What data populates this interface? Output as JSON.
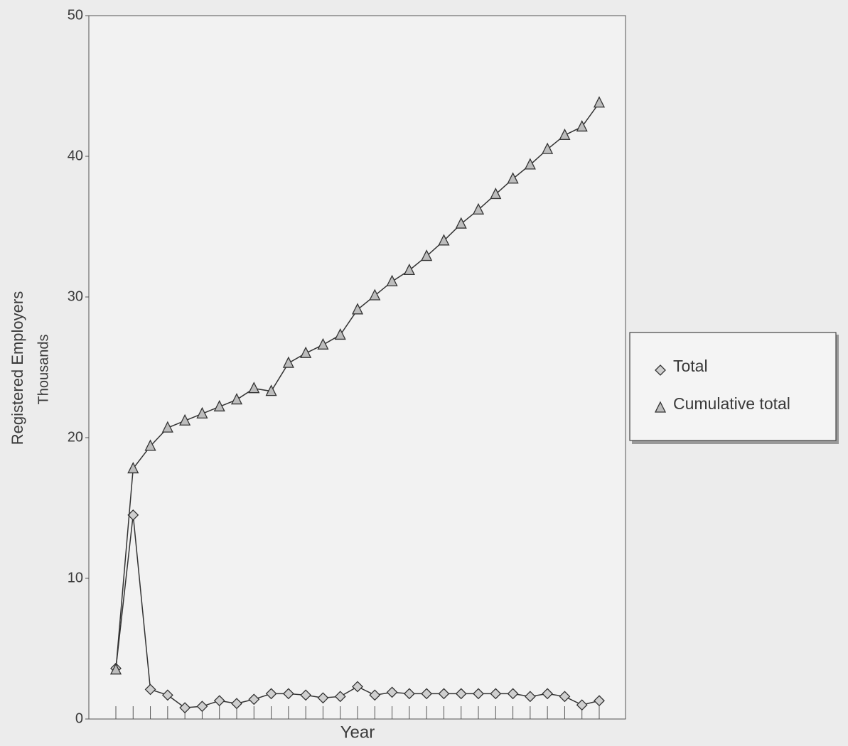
{
  "chart_data": {
    "type": "line",
    "x_label": "Year",
    "y_label": "Registered Employers",
    "y_unit_label": "Thousands",
    "categories": [
      null,
      null,
      null,
      null,
      null,
      null,
      null,
      null,
      null,
      null,
      null,
      null,
      null,
      null,
      null,
      null,
      null,
      null,
      null,
      null,
      null,
      null,
      null,
      null,
      null,
      null,
      null,
      null,
      null
    ],
    "series": [
      {
        "name": "Total",
        "color": "#333333",
        "marker": "diamond",
        "values": [
          3.6,
          14.5,
          2.1,
          1.7,
          0.8,
          0.9,
          1.3,
          1.1,
          1.4,
          1.8,
          1.8,
          1.7,
          1.5,
          1.6,
          2.3,
          1.7,
          1.9,
          1.8,
          1.8,
          1.8,
          1.8,
          1.8,
          1.8,
          1.8,
          1.6,
          1.8,
          1.6,
          1.0,
          1.3
        ]
      },
      {
        "name": "Cumulative total",
        "color": "#333333",
        "marker": "triangle",
        "values": [
          3.5,
          17.8,
          19.4,
          20.7,
          21.2,
          21.7,
          22.2,
          22.7,
          23.5,
          23.3,
          25.3,
          26.0,
          26.6,
          27.3,
          29.1,
          30.1,
          31.1,
          31.9,
          32.9,
          34.0,
          35.2,
          36.2,
          37.3,
          38.4,
          39.4,
          40.5,
          41.5,
          42.1,
          43.8
        ]
      }
    ],
    "ylim": [
      0,
      50
    ],
    "yticks": [
      0,
      10,
      20,
      30,
      40,
      50
    ],
    "legend": "right"
  }
}
